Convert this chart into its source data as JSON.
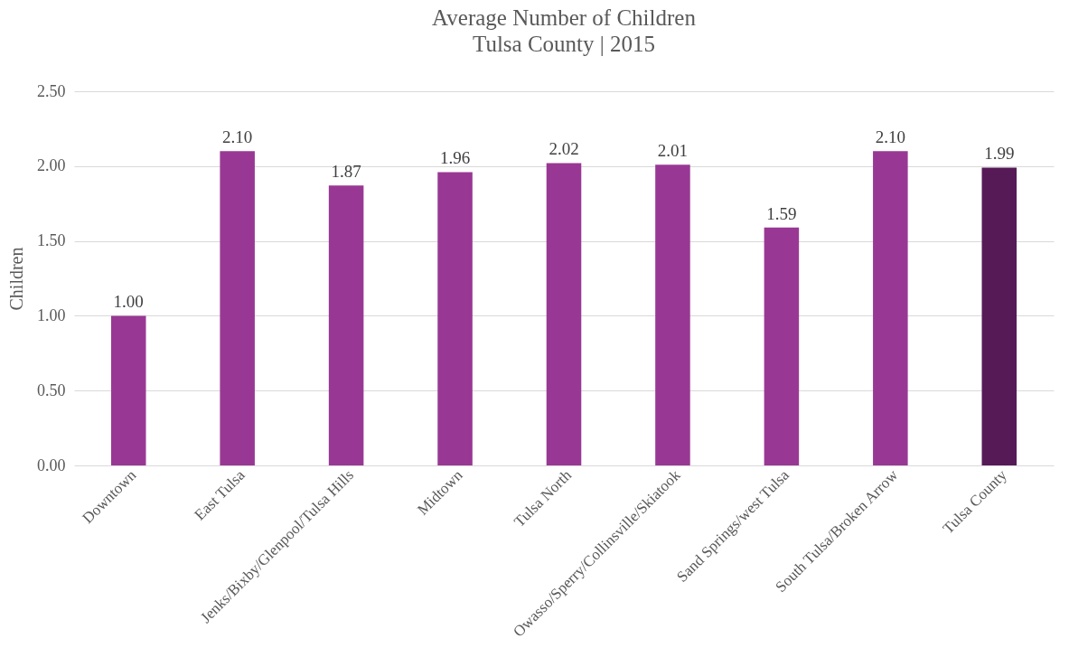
{
  "chart_data": {
    "type": "bar",
    "title": "Average Number of Children",
    "subtitle": "Tulsa County | 2015",
    "ylabel": "Children",
    "categories": [
      "Downtown",
      "East Tulsa",
      "Jenks/Bixby/Glenpool/Tulsa Hills",
      "Midtown",
      "Tulsa North",
      "Owasso/Sperry/Collinsville/Skiatook",
      "Sand Springs/west Tulsa",
      "South Tulsa/Broken Arrow",
      "Tulsa County"
    ],
    "values": [
      1.0,
      2.1,
      1.87,
      1.96,
      2.02,
      2.01,
      1.59,
      2.1,
      1.99
    ],
    "value_labels": [
      "1.00",
      "2.10",
      "1.87",
      "1.96",
      "2.02",
      "2.01",
      "1.59",
      "2.10",
      "1.99"
    ],
    "colors": [
      "#993894",
      "#993894",
      "#993894",
      "#993894",
      "#993894",
      "#993894",
      "#993894",
      "#993894",
      "#561a57"
    ],
    "ylim": [
      0,
      2.5
    ],
    "yticks": [
      {
        "value": 0,
        "label": "0.00"
      },
      {
        "value": 0.5,
        "label": "0.50"
      },
      {
        "value": 1,
        "label": "1.00"
      },
      {
        "value": 1.5,
        "label": "1.50"
      },
      {
        "value": 2,
        "label": "2.00"
      },
      {
        "value": 2.5,
        "label": "2.50"
      }
    ],
    "grid": "y"
  }
}
